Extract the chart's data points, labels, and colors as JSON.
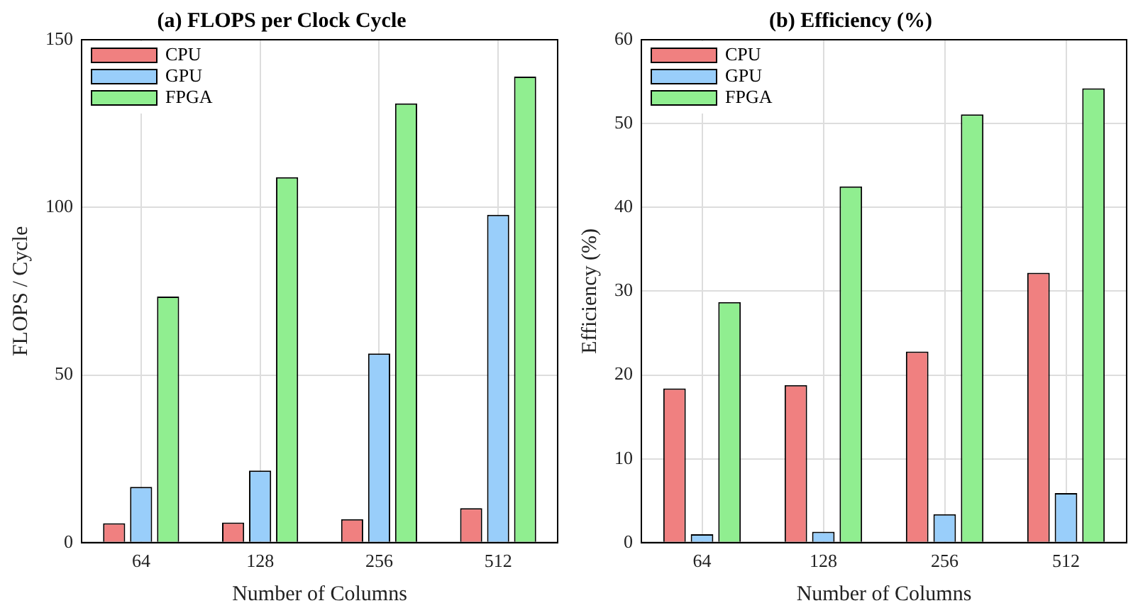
{
  "chart_data": [
    {
      "type": "bar",
      "title": "(a) FLOPS per Clock Cycle",
      "xlabel": "Number of Columns",
      "ylabel": "FLOPS / Cycle",
      "categories": [
        "64",
        "128",
        "256",
        "512"
      ],
      "series": [
        {
          "name": "CPU",
          "color": "#f08080",
          "values": [
            5.8,
            6,
            7,
            10.3
          ]
        },
        {
          "name": "GPU",
          "color": "#99cefa",
          "values": [
            16.6,
            21.5,
            56.4,
            97.8
          ]
        },
        {
          "name": "FPGA",
          "color": "#90ee90",
          "values": [
            73.4,
            109,
            131,
            139
          ]
        }
      ],
      "ylim": [
        0,
        150
      ],
      "yticks": [
        0,
        50,
        100,
        150
      ],
      "grid": true,
      "legend": "top left"
    },
    {
      "type": "bar",
      "title": "(b) Efficiency (%)",
      "xlabel": "Number of Columns",
      "ylabel": "Efficiency (%)",
      "categories": [
        "64",
        "128",
        "256",
        "512"
      ],
      "series": [
        {
          "name": "CPU",
          "color": "#f08080",
          "values": [
            18.4,
            18.8,
            22.8,
            32.2
          ]
        },
        {
          "name": "GPU",
          "color": "#99cefa",
          "values": [
            1.0,
            1.3,
            3.4,
            5.9
          ]
        },
        {
          "name": "FPGA",
          "color": "#90ee90",
          "values": [
            28.7,
            42.5,
            51.1,
            54.2
          ]
        }
      ],
      "ylim": [
        0,
        60
      ],
      "yticks": [
        0,
        10,
        20,
        30,
        40,
        50,
        60
      ],
      "grid": true,
      "legend": "top left"
    }
  ]
}
